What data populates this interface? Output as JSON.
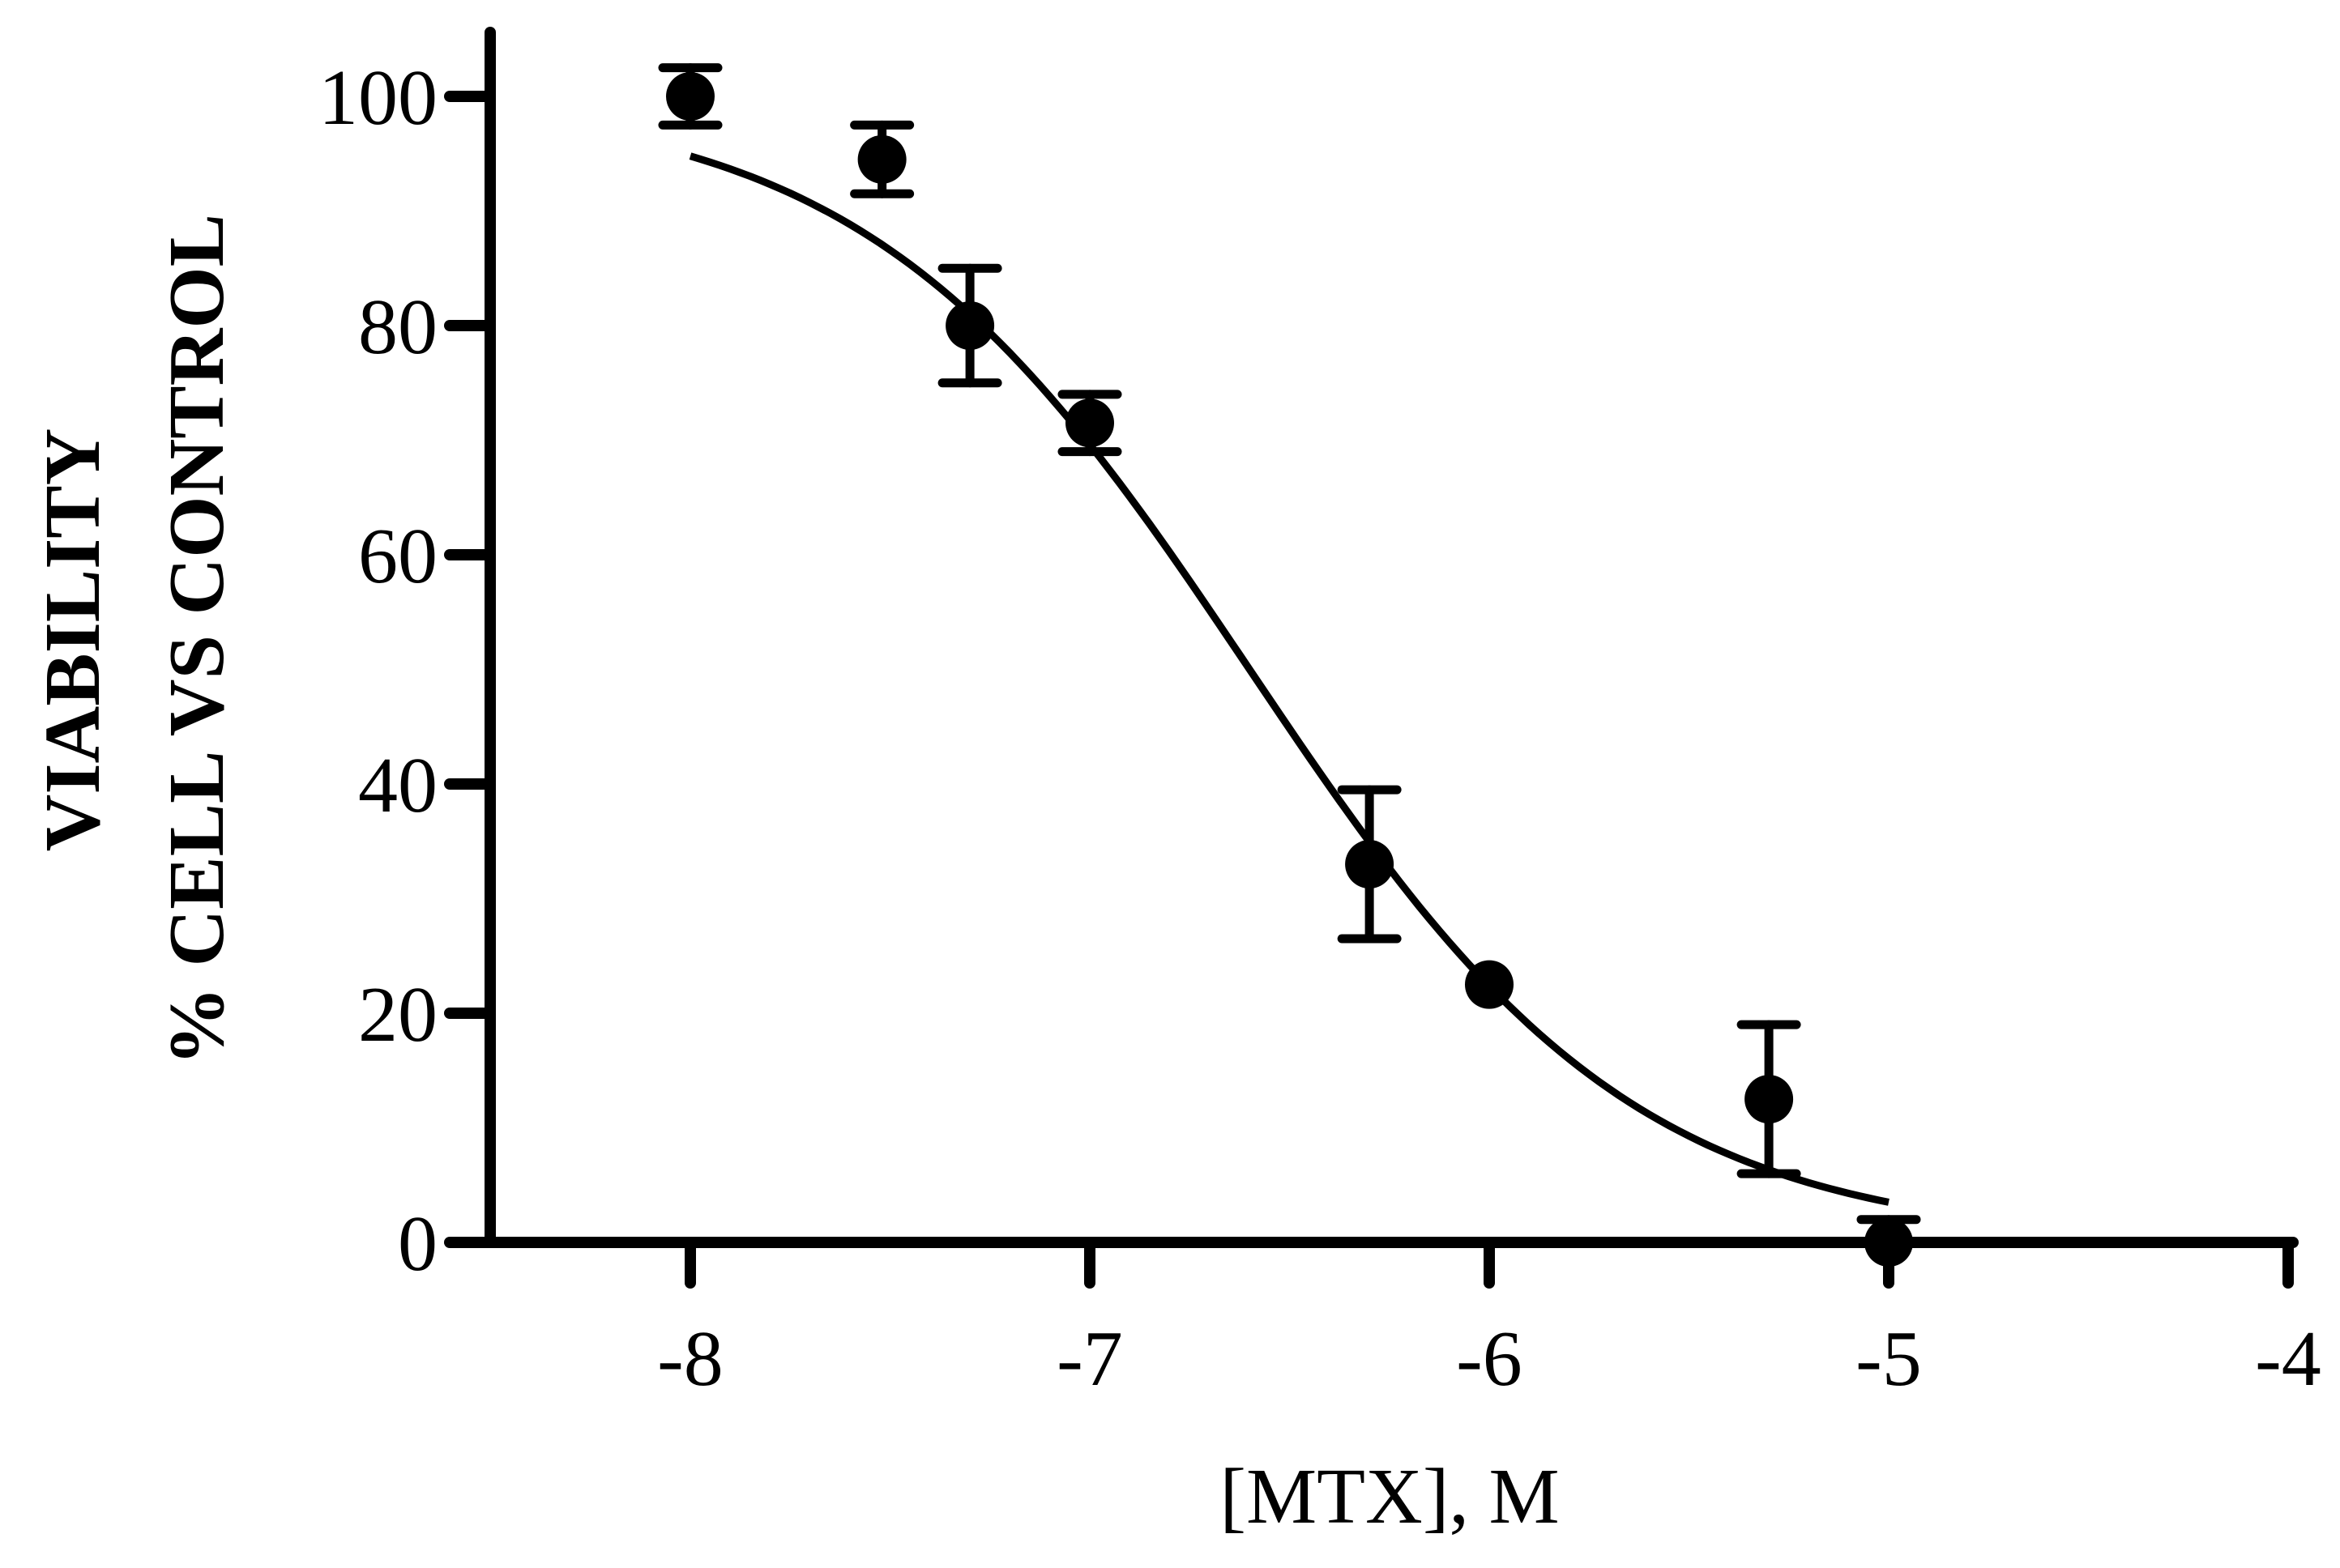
{
  "chart_data": {
    "type": "scatter",
    "xlabel": "[MTX], M",
    "ylabel_lines": [
      "VIABILITY",
      "% CELL VS CONTROL"
    ],
    "xlim": [
      -8.5,
      -4
    ],
    "ylim": [
      0,
      105
    ],
    "xticks": [
      -8,
      -7,
      -6,
      -5,
      -4
    ],
    "xtick_labels": [
      "-8",
      "-7",
      "-6",
      "-5",
      "-4"
    ],
    "yticks": [
      0,
      20,
      40,
      60,
      80,
      100
    ],
    "ytick_labels": [
      "0",
      "20",
      "40",
      "60",
      "80",
      "100"
    ],
    "grid": false,
    "series": [
      {
        "kind": "points_with_error",
        "x": [
          -8,
          -7.52,
          -7.3,
          -7,
          -6.3,
          -6,
          -5.3,
          -5
        ],
        "y": [
          100,
          94.5,
          80,
          71.5,
          33,
          22.5,
          12.5,
          0
        ],
        "err": [
          2.5,
          3,
          5,
          2.5,
          6.5,
          0,
          6.5,
          2
        ]
      },
      {
        "kind": "fit_curve",
        "model": "four-parameter logistic",
        "top": 100,
        "bottom": 0,
        "logIC50": -6.6,
        "hill_slope": 0.9,
        "x_range": [
          -8,
          -5
        ]
      }
    ]
  }
}
